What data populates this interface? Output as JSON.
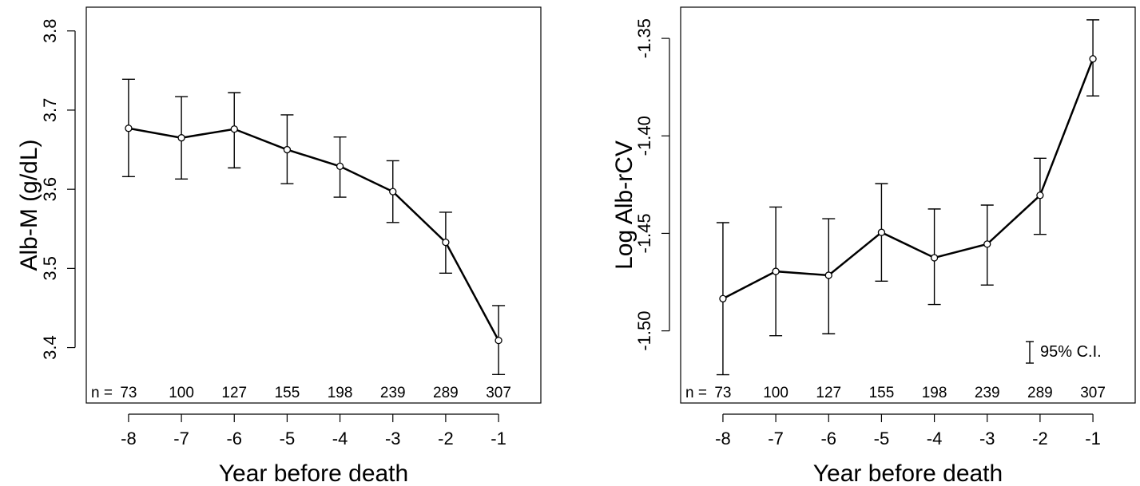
{
  "chart_data": [
    {
      "type": "line",
      "categories": [
        "-8",
        "-7",
        "-6",
        "-5",
        "-4",
        "-3",
        "-2",
        "-1"
      ],
      "x": [
        -8,
        -7,
        -6,
        -5,
        -4,
        -3,
        -2,
        -1
      ],
      "series": [
        {
          "values": [
            3.677,
            3.665,
            3.676,
            3.65,
            3.629,
            3.597,
            3.533,
            3.409
          ],
          "ci_lower": [
            3.616,
            3.613,
            3.627,
            3.607,
            3.59,
            3.558,
            3.494,
            3.366
          ],
          "ci_upper": [
            3.739,
            3.717,
            3.722,
            3.694,
            3.666,
            3.636,
            3.571,
            3.453
          ]
        }
      ],
      "n_prefix": "n =",
      "n_values": [
        "73",
        "100",
        "127",
        "155",
        "198",
        "239",
        "289",
        "307"
      ],
      "xlabel": "Year before death",
      "ylabel": "Alb-M (g/dL)",
      "yticks": [
        "3.4",
        "3.5",
        "3.6",
        "3.7",
        "3.8"
      ],
      "ytick_values": [
        3.4,
        3.5,
        3.6,
        3.7,
        3.8
      ],
      "xlim": [
        -8.8,
        -0.2
      ],
      "ylim": [
        3.33,
        3.83
      ],
      "grid": false,
      "legend": ""
    },
    {
      "type": "line",
      "categories": [
        "-8",
        "-7",
        "-6",
        "-5",
        "-4",
        "-3",
        "-2",
        "-1"
      ],
      "x": [
        -8,
        -7,
        -6,
        -5,
        -4,
        -3,
        -2,
        -1
      ],
      "series": [
        {
          "values": [
            -1.4835,
            -1.4695,
            -1.4715,
            -1.4495,
            -1.4625,
            -1.4555,
            -1.4305,
            -1.3605
          ],
          "ci_lower": [
            -1.5225,
            -1.5025,
            -1.5015,
            -1.4745,
            -1.4865,
            -1.4765,
            -1.4505,
            -1.3795
          ],
          "ci_upper": [
            -1.4445,
            -1.4365,
            -1.4425,
            -1.4245,
            -1.4375,
            -1.4355,
            -1.4115,
            -1.3405
          ]
        }
      ],
      "n_prefix": "n =",
      "n_values": [
        "73",
        "100",
        "127",
        "155",
        "198",
        "239",
        "289",
        "307"
      ],
      "xlabel": "Year before death",
      "ylabel": "Log Alb-rCV",
      "yticks": [
        "-1.50",
        "-1.45",
        "-1.40",
        "-1.35"
      ],
      "ytick_values": [
        -1.5,
        -1.45,
        -1.4,
        -1.35
      ],
      "xlim": [
        -8.8,
        -0.2
      ],
      "ylim": [
        -1.537,
        -1.334
      ],
      "grid": false,
      "legend": "95% C.I."
    }
  ]
}
